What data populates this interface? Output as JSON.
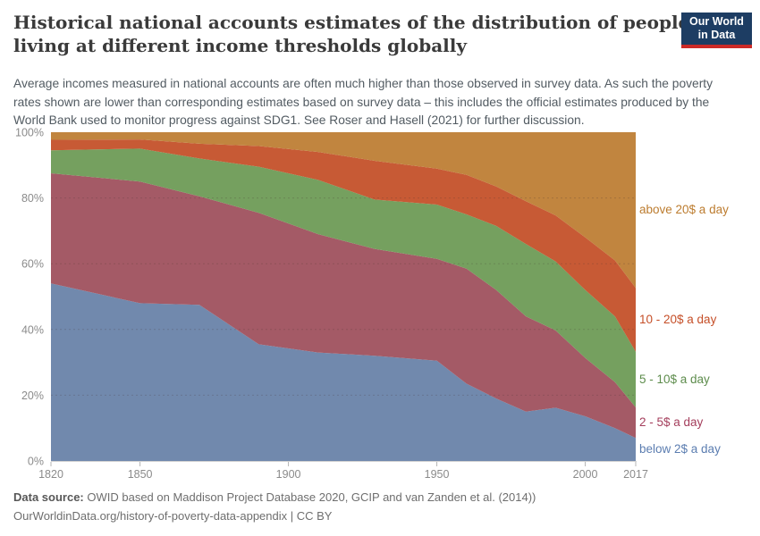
{
  "header": {
    "title": "Historical national accounts estimates of the distribution of people living at different income thresholds globally",
    "subtitle": "Average incomes measured in national accounts are often much higher than those observed in survey data. As such the poverty rates shown are lower than corresponding estimates based on survey data – this includes the official estimates produced by the World Bank used to monitor progress against SDG1. See Roser and Hasell (2021) for further discussion.",
    "logo": {
      "line1": "Our World",
      "line2": "in Data",
      "bg_color": "#1d3d63",
      "stripe_color": "#cc2a27"
    }
  },
  "chart_data": {
    "type": "area",
    "stacked": true,
    "title": "Historical national accounts estimates of the distribution of people living at different income thresholds globally",
    "xlabel": "",
    "ylabel": "",
    "xlim": [
      1820,
      2017
    ],
    "ylim": [
      0,
      100
    ],
    "grid": true,
    "legend_position": "right",
    "x": [
      1820,
      1850,
      1870,
      1890,
      1910,
      1929,
      1950,
      1960,
      1970,
      1980,
      1990,
      2000,
      2010,
      2017
    ],
    "series": [
      {
        "name": "below 2$ a day",
        "color": "#7189ad",
        "label_color": "#5b7db0",
        "values": [
          54,
          48,
          47.5,
          35.5,
          33,
          32,
          30.5,
          23.5,
          19,
          15,
          16.2,
          13.6,
          10,
          7
        ]
      },
      {
        "name": "2 - 5$ a day",
        "color": "#a45a66",
        "label_color": "#a43e5c",
        "values": [
          33.5,
          37,
          33,
          40,
          36,
          32.5,
          31,
          35,
          33,
          29,
          23.5,
          17.7,
          14,
          9.3
        ]
      },
      {
        "name": "5 - 10$ a day",
        "color": "#75a05f",
        "label_color": "#5d8c4c",
        "values": [
          7,
          10,
          11.5,
          14,
          16.5,
          15,
          16.5,
          16.5,
          19.5,
          22,
          21,
          20.7,
          20,
          16.9
        ]
      },
      {
        "name": "10 - 20$ a day",
        "color": "#c75a35",
        "label_color": "#c54e27",
        "values": [
          3.2,
          2.8,
          4.5,
          6.3,
          8.5,
          11.8,
          10.9,
          12,
          12,
          13,
          14,
          16,
          17,
          19.4
        ]
      },
      {
        "name": "above 20$ a day",
        "color": "#c1853f",
        "label_color": "#bc7c2f",
        "values": [
          2.3,
          2.2,
          3.5,
          4.2,
          6,
          8.7,
          11.1,
          13,
          16.5,
          21,
          25.3,
          32,
          39,
          47.4
        ]
      }
    ],
    "x_ticks": [
      "1820",
      "1850",
      "1900",
      "1950",
      "2000",
      "2017"
    ],
    "y_ticks": [
      "0%",
      "20%",
      "40%",
      "60%",
      "80%",
      "100%"
    ]
  },
  "footer": {
    "source_label": "Data source:",
    "source_text": " OWID based on Maddison Project Database 2020, GCIP and van Zanden et al. (2014))",
    "note": "OurWorldinData.org/history-of-poverty-data-appendix | CC BY"
  }
}
